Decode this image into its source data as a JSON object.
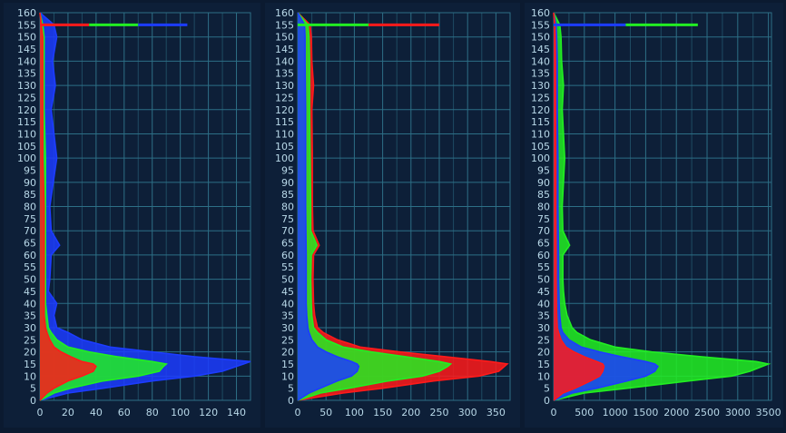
{
  "colors": {
    "background": "#0d1f38",
    "grid": "#2d6f86",
    "tick_text": "#b8d8e8",
    "red": "#ff1a1a",
    "green": "#22ee22",
    "blue": "#1c3cff"
  },
  "chart_data": [
    {
      "type": "line",
      "orientation": "horizontal-histogram",
      "xlim": [
        0,
        150
      ],
      "ylim": [
        0,
        160
      ],
      "x_ticks": [
        "0",
        "20",
        "40",
        "60",
        "80",
        "100",
        "120",
        "140"
      ],
      "x_tick_values": [
        0,
        20,
        40,
        60,
        80,
        100,
        120,
        140
      ],
      "y_ticks": [
        "0",
        "5",
        "10",
        "15",
        "20",
        "25",
        "30",
        "35",
        "40",
        "45",
        "50",
        "55",
        "60",
        "65",
        "70",
        "75",
        "80",
        "85",
        "90",
        "95",
        "100",
        "105",
        "110",
        "115",
        "120",
        "125",
        "130",
        "135",
        "140",
        "145",
        "150",
        "155",
        "160"
      ],
      "y_tick_values": [
        0,
        5,
        10,
        15,
        20,
        25,
        30,
        35,
        40,
        45,
        50,
        55,
        60,
        65,
        70,
        75,
        80,
        85,
        90,
        95,
        100,
        105,
        110,
        115,
        120,
        125,
        130,
        135,
        140,
        145,
        150,
        155,
        160
      ],
      "grid": true,
      "cap_line": {
        "y": 155,
        "x": [
          0,
          105
        ],
        "colors": [
          "red",
          "green",
          "blue"
        ]
      },
      "series": [
        {
          "color": "blue",
          "y": [
            0,
            3,
            5,
            8,
            10,
            12,
            14,
            15,
            16,
            18,
            20,
            22,
            25,
            28,
            30,
            35,
            40,
            45,
            50,
            60,
            64,
            70,
            80,
            100,
            120,
            130,
            140,
            150,
            155,
            160
          ],
          "x": [
            0,
            20,
            45,
            80,
            110,
            130,
            140,
            145,
            150,
            110,
            80,
            50,
            30,
            20,
            12,
            10,
            12,
            6,
            7,
            8,
            14,
            8,
            7,
            12,
            8,
            11,
            9,
            12,
            10,
            0
          ]
        },
        {
          "color": "green",
          "y": [
            0,
            3,
            5,
            8,
            10,
            12,
            14,
            15,
            16,
            18,
            20,
            22,
            25,
            28,
            30,
            35,
            40,
            45,
            50,
            60,
            70,
            80,
            100,
            120,
            140,
            150,
            155,
            160
          ],
          "x": [
            0,
            10,
            22,
            45,
            70,
            85,
            88,
            90,
            80,
            55,
            35,
            20,
            12,
            8,
            6,
            5,
            4,
            4,
            4,
            4,
            4,
            4,
            4,
            3,
            3,
            3,
            2,
            0
          ]
        },
        {
          "color": "red",
          "y": [
            0,
            3,
            5,
            8,
            10,
            12,
            14,
            15,
            16,
            18,
            20,
            22,
            25,
            28,
            30,
            35,
            40,
            50,
            60,
            80,
            100,
            120,
            140,
            150,
            155,
            160
          ],
          "x": [
            0,
            5,
            10,
            20,
            30,
            38,
            40,
            38,
            30,
            22,
            15,
            10,
            7,
            5,
            4,
            3,
            3,
            3,
            3,
            3,
            2,
            2,
            2,
            2,
            1,
            0
          ]
        }
      ]
    },
    {
      "type": "line",
      "orientation": "horizontal-histogram",
      "xlim": [
        0,
        375
      ],
      "ylim": [
        0,
        160
      ],
      "x_ticks": [
        "0",
        "50",
        "100",
        "150",
        "200",
        "250",
        "300",
        "350"
      ],
      "x_tick_values": [
        0,
        50,
        100,
        150,
        200,
        250,
        300,
        350
      ],
      "y_ticks": [
        "0",
        "5",
        "10",
        "15",
        "20",
        "25",
        "30",
        "35",
        "40",
        "45",
        "50",
        "55",
        "60",
        "65",
        "70",
        "75",
        "80",
        "85",
        "90",
        "95",
        "100",
        "105",
        "110",
        "115",
        "120",
        "125",
        "130",
        "135",
        "140",
        "145",
        "150",
        "155",
        "160"
      ],
      "y_tick_values": [
        0,
        5,
        10,
        15,
        20,
        25,
        30,
        35,
        40,
        45,
        50,
        55,
        60,
        65,
        70,
        75,
        80,
        85,
        90,
        95,
        100,
        105,
        110,
        115,
        120,
        125,
        130,
        135,
        140,
        145,
        150,
        155,
        160
      ],
      "grid": true,
      "cap_line": {
        "y": 155,
        "x": [
          0,
          250
        ],
        "colors": [
          "green",
          "red"
        ]
      },
      "series": [
        {
          "color": "red",
          "y": [
            0,
            3,
            5,
            8,
            10,
            12,
            14,
            15,
            16,
            18,
            20,
            22,
            25,
            28,
            30,
            35,
            40,
            50,
            60,
            64,
            70,
            80,
            100,
            120,
            130,
            140,
            150,
            155,
            160
          ],
          "x": [
            0,
            80,
            150,
            240,
            320,
            355,
            365,
            370,
            340,
            260,
            180,
            110,
            70,
            45,
            35,
            30,
            28,
            27,
            28,
            38,
            27,
            26,
            26,
            25,
            28,
            25,
            24,
            22,
            0
          ]
        },
        {
          "color": "green",
          "y": [
            0,
            3,
            5,
            8,
            10,
            12,
            14,
            15,
            16,
            18,
            20,
            22,
            25,
            28,
            30,
            35,
            40,
            50,
            60,
            64,
            70,
            80,
            100,
            120,
            140,
            150,
            155,
            160
          ],
          "x": [
            0,
            40,
            90,
            160,
            220,
            250,
            265,
            270,
            250,
            190,
            130,
            80,
            50,
            35,
            28,
            25,
            24,
            23,
            24,
            34,
            23,
            23,
            22,
            21,
            21,
            20,
            18,
            0
          ]
        },
        {
          "color": "blue",
          "y": [
            0,
            3,
            5,
            8,
            10,
            12,
            14,
            15,
            16,
            18,
            20,
            22,
            25,
            28,
            30,
            35,
            40,
            50,
            60,
            80,
            100,
            120,
            140,
            150,
            155,
            160
          ],
          "x": [
            0,
            20,
            40,
            70,
            95,
            105,
            108,
            105,
            95,
            70,
            50,
            35,
            25,
            20,
            18,
            16,
            15,
            15,
            15,
            14,
            14,
            14,
            13,
            13,
            12,
            0
          ]
        }
      ]
    },
    {
      "type": "line",
      "orientation": "horizontal-histogram",
      "xlim": [
        0,
        3550
      ],
      "ylim": [
        0,
        160
      ],
      "x_ticks": [
        "0",
        "500",
        "1000",
        "1500",
        "2000",
        "2500",
        "3000",
        "3500"
      ],
      "x_tick_values": [
        0,
        500,
        1000,
        1500,
        2000,
        2500,
        3000,
        3500
      ],
      "y_ticks": [
        "0",
        "5",
        "10",
        "15",
        "20",
        "25",
        "30",
        "35",
        "40",
        "45",
        "50",
        "55",
        "60",
        "65",
        "70",
        "75",
        "80",
        "85",
        "90",
        "95",
        "100",
        "105",
        "110",
        "115",
        "120",
        "125",
        "130",
        "135",
        "140",
        "145",
        "150",
        "155",
        "160"
      ],
      "y_tick_values": [
        0,
        5,
        10,
        15,
        20,
        25,
        30,
        35,
        40,
        45,
        50,
        55,
        60,
        65,
        70,
        75,
        80,
        85,
        90,
        95,
        100,
        105,
        110,
        115,
        120,
        125,
        130,
        135,
        140,
        145,
        150,
        155,
        160
      ],
      "grid": true,
      "cap_line": {
        "y": 155,
        "x": [
          0,
          2350
        ],
        "colors": [
          "blue",
          "green"
        ]
      },
      "series": [
        {
          "color": "green",
          "y": [
            0,
            3,
            5,
            8,
            10,
            12,
            14,
            15,
            16,
            18,
            20,
            22,
            25,
            28,
            30,
            35,
            40,
            45,
            50,
            60,
            64,
            70,
            80,
            100,
            120,
            130,
            140,
            150,
            155,
            160
          ],
          "x": [
            0,
            500,
            1200,
            2200,
            2900,
            3200,
            3400,
            3500,
            3300,
            2400,
            1600,
            1000,
            600,
            380,
            300,
            220,
            180,
            160,
            150,
            150,
            260,
            150,
            140,
            180,
            140,
            160,
            130,
            120,
            100,
            0
          ]
        },
        {
          "color": "blue",
          "y": [
            0,
            3,
            5,
            8,
            10,
            12,
            14,
            15,
            16,
            18,
            20,
            22,
            25,
            28,
            30,
            35,
            40,
            50,
            60,
            80,
            100,
            120,
            140,
            150,
            155,
            160
          ],
          "x": [
            0,
            300,
            700,
            1200,
            1500,
            1650,
            1700,
            1650,
            1500,
            1100,
            750,
            450,
            250,
            150,
            120,
            100,
            90,
            80,
            80,
            70,
            70,
            60,
            60,
            50,
            40,
            0
          ]
        },
        {
          "color": "red",
          "y": [
            0,
            3,
            5,
            8,
            10,
            12,
            14,
            15,
            16,
            18,
            20,
            22,
            25,
            28,
            30,
            35,
            40,
            50,
            60,
            80,
            100,
            120,
            140,
            150,
            155,
            160
          ],
          "x": [
            0,
            150,
            350,
            600,
            750,
            800,
            820,
            800,
            700,
            500,
            330,
            200,
            120,
            80,
            60,
            50,
            45,
            40,
            40,
            35,
            35,
            30,
            30,
            25,
            20,
            0
          ]
        }
      ]
    }
  ]
}
